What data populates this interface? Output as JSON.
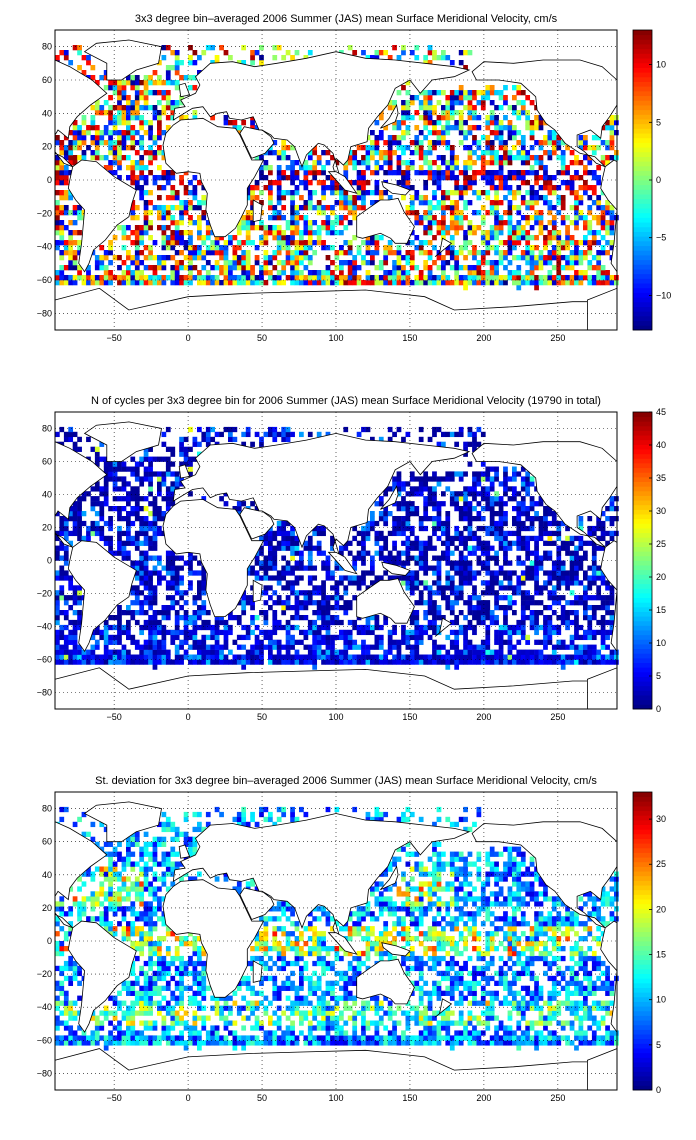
{
  "panels": [
    {
      "title": "3x3 degree bin–averaged 2006 Summer (JAS) mean Surface Meridional Velocity, cm/s",
      "colorbar": {
        "range": [
          -13,
          13
        ],
        "ticks": [
          -10,
          -5,
          0,
          5,
          10
        ]
      },
      "kind": "diverging"
    },
    {
      "title": "N of cycles per 3x3 degree bin for 2006 Summer (JAS) mean Surface Meridional Velocity (19790 in total)",
      "colorbar": {
        "range": [
          0,
          45
        ],
        "ticks": [
          0,
          5,
          10,
          15,
          20,
          25,
          30,
          35,
          40,
          45
        ]
      },
      "kind": "count"
    },
    {
      "title": "St. deviation for 3x3 degree bin–averaged 2006 Summer (JAS) mean Surface Meridional Velocity, cm/s",
      "colorbar": {
        "range": [
          0,
          33
        ],
        "ticks": [
          0,
          5,
          10,
          15,
          20,
          25,
          30
        ]
      },
      "kind": "std"
    }
  ],
  "axes": {
    "xlim": [
      -90,
      290
    ],
    "ylim": [
      -90,
      90
    ],
    "xticks": [
      -50,
      0,
      50,
      100,
      150,
      200,
      250
    ],
    "yticks": [
      -80,
      -60,
      -40,
      -20,
      0,
      20,
      40,
      60,
      80
    ],
    "grid": "dotted"
  },
  "colormap": "jet"
}
